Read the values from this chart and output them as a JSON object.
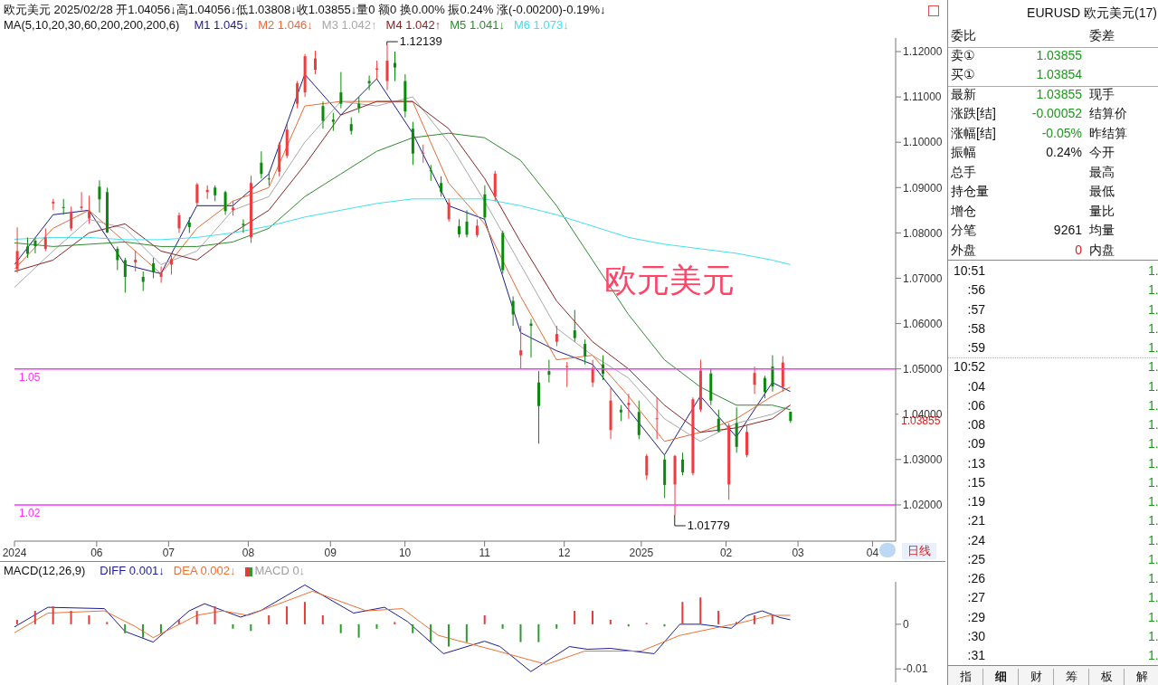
{
  "chart_data": [
    {
      "type": "candlestick",
      "title": "欧元美元 2025/02/28 开1.04056↓高1.04056↓低1.03808↓收1.03855↓量0 额0 换0.00% 振0.24% 涨(-0.00200)-0.19%↓",
      "legend_title": "MA(5,10,20,30,60,200,200,200,6)",
      "legend": "top left",
      "xlabel": "日线",
      "marker": "none",
      "line_style": "solid",
      "xlim": [
        "2024-05-02",
        "2025-04-10"
      ],
      "xticks": [
        {
          "value": "2024-05-02",
          "label": "2024"
        },
        {
          "value": "2024-06-03",
          "label": "06"
        },
        {
          "value": "2024-07-01",
          "label": "07"
        },
        {
          "value": "2024-08-01",
          "label": "08"
        },
        {
          "value": "2024-09-02",
          "label": "09"
        },
        {
          "value": "2024-10-01",
          "label": "10"
        },
        {
          "value": "2024-11-01",
          "label": "11"
        },
        {
          "value": "2024-12-02",
          "label": "12"
        },
        {
          "value": "2025-01-01",
          "label": "2025"
        },
        {
          "value": "2025-02-03",
          "label": "02"
        },
        {
          "value": "2025-03-03",
          "label": "03"
        },
        {
          "value": "2025-04-01",
          "label": "04"
        }
      ],
      "ylim": [
        1.012,
        1.123
      ],
      "yticks": [
        {
          "value": 1.02,
          "label": "1.02000"
        },
        {
          "value": 1.03,
          "label": "1.03000"
        },
        {
          "value": 1.04,
          "label": "1.04000"
        },
        {
          "value": 1.05,
          "label": "1.05000"
        },
        {
          "value": 1.06,
          "label": "1.06000"
        },
        {
          "value": 1.07,
          "label": "1.07000"
        },
        {
          "value": 1.08,
          "label": "1.08000"
        },
        {
          "value": 1.09,
          "label": "1.09000"
        },
        {
          "value": 1.1,
          "label": "1.10000"
        },
        {
          "value": 1.11,
          "label": "1.11000"
        },
        {
          "value": 1.12,
          "label": "1.12000"
        }
      ],
      "x": [
        "2024-05-03",
        "2024-05-07",
        "2024-05-10",
        "2024-05-14",
        "2024-05-17",
        "2024-05-21",
        "2024-05-24",
        "2024-05-28",
        "2024-05-31",
        "2024-06-04",
        "2024-06-07",
        "2024-06-11",
        "2024-06-14",
        "2024-06-18",
        "2024-06-21",
        "2024-06-25",
        "2024-06-28",
        "2024-07-02",
        "2024-07-05",
        "2024-07-09",
        "2024-07-12",
        "2024-07-16",
        "2024-07-19",
        "2024-07-23",
        "2024-07-26",
        "2024-07-30",
        "2024-08-02",
        "2024-08-06",
        "2024-08-09",
        "2024-08-13",
        "2024-08-16",
        "2024-08-20",
        "2024-08-23",
        "2024-08-27",
        "2024-08-30",
        "2024-09-03",
        "2024-09-06",
        "2024-09-10",
        "2024-09-13",
        "2024-09-17",
        "2024-09-20",
        "2024-09-24",
        "2024-09-27",
        "2024-10-01",
        "2024-10-04",
        "2024-10-08",
        "2024-10-11",
        "2024-10-15",
        "2024-10-18",
        "2024-10-22",
        "2024-10-25",
        "2024-10-29",
        "2024-11-01",
        "2024-11-05",
        "2024-11-08",
        "2024-11-12",
        "2024-11-15",
        "2024-11-19",
        "2024-11-22",
        "2024-11-26",
        "2024-11-29",
        "2024-12-03",
        "2024-12-06",
        "2024-12-10",
        "2024-12-13",
        "2024-12-17",
        "2024-12-20",
        "2024-12-24",
        "2024-12-27",
        "2024-12-31",
        "2025-01-03",
        "2025-01-07",
        "2025-01-10",
        "2025-01-14",
        "2025-01-17",
        "2025-01-21",
        "2025-01-24",
        "2025-01-28",
        "2025-01-31",
        "2025-02-04",
        "2025-02-07",
        "2025-02-11",
        "2025-02-14",
        "2025-02-18",
        "2025-02-21",
        "2025-02-25",
        "2025-02-28"
      ],
      "ohlc": [
        [
          1.072,
          1.0812,
          1.0712,
          1.076
        ],
        [
          1.077,
          1.079,
          1.0745,
          1.0754
        ],
        [
          1.0783,
          1.079,
          1.0755,
          1.0771
        ],
        [
          1.0765,
          1.081,
          1.076,
          1.079
        ],
        [
          1.0865,
          1.0875,
          1.085,
          1.0869
        ],
        [
          1.0857,
          1.0875,
          1.084,
          1.0856
        ],
        [
          1.081,
          1.0858,
          1.0805,
          1.0847
        ],
        [
          1.0855,
          1.089,
          1.085,
          1.0858
        ],
        [
          1.0832,
          1.0882,
          1.082,
          1.0848
        ],
        [
          1.0902,
          1.0916,
          1.0845,
          1.0874
        ],
        [
          1.089,
          1.09,
          1.08,
          1.0801
        ],
        [
          1.0765,
          1.077,
          1.0718,
          1.074
        ],
        [
          1.074,
          1.0745,
          1.0668,
          1.0703
        ],
        [
          1.0735,
          1.076,
          1.0715,
          1.0741
        ],
        [
          1.0703,
          1.0715,
          1.0672,
          1.0692
        ],
        [
          1.0733,
          1.0745,
          1.07,
          1.0714
        ],
        [
          1.0703,
          1.0726,
          1.069,
          1.0713
        ],
        [
          1.073,
          1.075,
          1.0708,
          1.0742
        ],
        [
          1.081,
          1.0845,
          1.08,
          1.0839
        ],
        [
          1.0823,
          1.0835,
          1.08,
          1.0813
        ],
        [
          1.0866,
          1.091,
          1.086,
          1.0907
        ],
        [
          1.089,
          1.0905,
          1.0875,
          1.0895
        ],
        [
          1.09,
          1.0905,
          1.087,
          1.0883
        ],
        [
          1.089,
          1.0893,
          1.084,
          1.0848
        ],
        [
          1.085,
          1.087,
          1.0838,
          1.0856
        ],
        [
          1.082,
          1.083,
          1.08,
          1.0817
        ],
        [
          1.079,
          1.0926,
          1.0778,
          1.091
        ],
        [
          1.0955,
          1.098,
          1.092,
          1.093
        ],
        [
          1.092,
          1.0935,
          1.0905,
          1.0918
        ],
        [
          1.0935,
          1.1,
          1.0925,
          1.0995
        ],
        [
          1.097,
          1.104,
          1.0965,
          1.1028
        ],
        [
          1.1085,
          1.1135,
          1.1075,
          1.113
        ],
        [
          1.111,
          1.1195,
          1.11,
          1.119
        ],
        [
          1.116,
          1.1202,
          1.115,
          1.1185
        ],
        [
          1.108,
          1.109,
          1.103,
          1.1047
        ],
        [
          1.105,
          1.1065,
          1.1025,
          1.1045
        ],
        [
          1.111,
          1.1155,
          1.1075,
          1.1085
        ],
        [
          1.104,
          1.1055,
          1.1017,
          1.1025
        ],
        [
          1.1085,
          1.11,
          1.1065,
          1.1076
        ],
        [
          1.1135,
          1.1147,
          1.1115,
          1.113
        ],
        [
          1.116,
          1.118,
          1.114,
          1.1163
        ],
        [
          1.1135,
          1.12139,
          1.1115,
          1.118
        ],
        [
          1.1175,
          1.12,
          1.1135,
          1.1165
        ],
        [
          1.1135,
          1.115,
          1.1055,
          1.1068
        ],
        [
          1.103,
          1.1045,
          1.095,
          1.0975
        ],
        [
          1.0975,
          1.0995,
          1.0955,
          1.0977
        ],
        [
          1.0938,
          1.095,
          1.0915,
          1.0937
        ],
        [
          1.091,
          1.0925,
          1.088,
          1.089
        ],
        [
          1.083,
          1.0875,
          1.0825,
          1.0866
        ],
        [
          1.0815,
          1.083,
          1.079,
          1.0797
        ],
        [
          1.0825,
          1.085,
          1.079,
          1.0796
        ],
        [
          1.0795,
          1.083,
          1.079,
          1.0816
        ],
        [
          1.0885,
          1.0905,
          1.083,
          1.0834
        ],
        [
          1.088,
          1.0937,
          1.087,
          1.0931
        ],
        [
          1.08,
          1.0805,
          1.071,
          1.0718
        ],
        [
          1.065,
          1.066,
          1.0595,
          1.062
        ],
        [
          1.053,
          1.0595,
          1.05,
          1.0541
        ],
        [
          1.06,
          1.061,
          1.0525,
          1.0595
        ],
        [
          1.047,
          1.0495,
          1.0335,
          1.0418
        ],
        [
          1.0495,
          1.052,
          1.047,
          1.0487
        ],
        [
          1.056,
          1.0595,
          1.055,
          1.0577
        ],
        [
          1.0505,
          1.0515,
          1.046,
          1.0506
        ],
        [
          1.0585,
          1.063,
          1.056,
          1.0568
        ],
        [
          1.0555,
          1.0565,
          1.051,
          1.0528
        ],
        [
          1.047,
          1.052,
          1.046,
          1.0502
        ],
        [
          1.051,
          1.053,
          1.0475,
          1.0489
        ],
        [
          1.0365,
          1.0458,
          1.0345,
          1.043
        ],
        [
          1.041,
          1.042,
          1.0385,
          1.0404
        ],
        [
          1.042,
          1.0445,
          1.039,
          1.0425
        ],
        [
          1.0405,
          1.043,
          1.0345,
          1.0354
        ],
        [
          1.0265,
          1.0312,
          1.0255,
          1.0308
        ],
        [
          1.039,
          1.0437,
          1.0345,
          1.0391
        ],
        [
          1.03,
          1.031,
          1.0215,
          1.0244
        ],
        [
          1.0245,
          1.031,
          1.01779,
          1.0308
        ],
        [
          1.03,
          1.0315,
          1.0265,
          1.0272
        ],
        [
          1.027,
          1.0437,
          1.0265,
          1.0433
        ],
        [
          1.041,
          1.052,
          1.0405,
          1.0496
        ],
        [
          1.049,
          1.05,
          1.042,
          1.043
        ],
        [
          1.039,
          1.041,
          1.036,
          1.0362
        ],
        [
          1.0245,
          1.038,
          1.0211,
          1.0375
        ],
        [
          1.038,
          1.0415,
          1.0315,
          1.0328
        ],
        [
          1.031,
          1.0375,
          1.0305,
          1.0361
        ],
        [
          1.0465,
          1.0505,
          1.0445,
          1.0491
        ],
        [
          1.048,
          1.0485,
          1.0435,
          1.0449
        ],
        [
          1.0505,
          1.053,
          1.045,
          1.0461
        ],
        [
          1.046,
          1.0528,
          1.045,
          1.0514
        ],
        [
          1.04056,
          1.04056,
          1.03808,
          1.03855
        ]
      ],
      "series": [
        {
          "name": "M1 1.045↓",
          "color": "#1c1c8c",
          "type": "line",
          "x": [
            "2024-05-02",
            "2024-05-17",
            "2024-05-31",
            "2024-06-14",
            "2024-06-28",
            "2024-07-12",
            "2024-07-26",
            "2024-08-09",
            "2024-08-23",
            "2024-09-06",
            "2024-09-20",
            "2024-10-04",
            "2024-10-18",
            "2024-11-01",
            "2024-11-15",
            "2024-11-29",
            "2024-12-13",
            "2024-12-27",
            "2025-01-10",
            "2025-01-24",
            "2025-02-07",
            "2025-02-21",
            "2025-02-28"
          ],
          "values": [
            1.073,
            1.084,
            1.085,
            1.073,
            1.071,
            1.086,
            1.086,
            1.093,
            1.115,
            1.106,
            1.114,
            1.102,
            1.086,
            1.083,
            1.058,
            1.054,
            1.051,
            1.041,
            1.031,
            1.044,
            1.035,
            1.047,
            1.045
          ]
        },
        {
          "name": "M2 1.046↓",
          "color": "#ec6a32",
          "type": "line",
          "x": [
            "2024-05-02",
            "2024-05-17",
            "2024-05-31",
            "2024-06-14",
            "2024-06-28",
            "2024-07-12",
            "2024-07-26",
            "2024-08-09",
            "2024-08-23",
            "2024-09-06",
            "2024-09-20",
            "2024-10-04",
            "2024-10-18",
            "2024-11-01",
            "2024-11-15",
            "2024-11-29",
            "2024-12-13",
            "2024-12-27",
            "2025-01-10",
            "2025-01-24",
            "2025-02-07",
            "2025-02-21",
            "2025-02-28"
          ],
          "values": [
            1.072,
            1.081,
            1.085,
            1.078,
            1.071,
            1.081,
            1.087,
            1.09,
            1.108,
            1.109,
            1.109,
            1.109,
            1.091,
            1.082,
            1.066,
            1.052,
            1.053,
            1.044,
            1.034,
            1.036,
            1.039,
            1.044,
            1.046
          ]
        },
        {
          "name": "M3 1.042↑",
          "color": "#a8a8a8",
          "type": "line",
          "x": [
            "2024-05-02",
            "2024-05-17",
            "2024-05-31",
            "2024-06-14",
            "2024-06-28",
            "2024-07-12",
            "2024-07-26",
            "2024-08-09",
            "2024-08-23",
            "2024-09-06",
            "2024-09-20",
            "2024-10-04",
            "2024-10-18",
            "2024-11-01",
            "2024-11-15",
            "2024-11-29",
            "2024-12-13",
            "2024-12-27",
            "2025-01-10",
            "2025-01-24",
            "2025-02-07",
            "2025-02-21",
            "2025-02-28"
          ],
          "values": [
            1.068,
            1.076,
            1.083,
            1.081,
            1.073,
            1.076,
            1.085,
            1.088,
            1.1,
            1.109,
            1.108,
            1.11,
            1.1,
            1.087,
            1.073,
            1.059,
            1.053,
            1.048,
            1.039,
            1.034,
            1.038,
            1.04,
            1.042
          ]
        },
        {
          "name": "M4 1.042↑",
          "color": "#8c2323",
          "type": "line",
          "x": [
            "2024-05-02",
            "2024-05-17",
            "2024-05-31",
            "2024-06-14",
            "2024-06-28",
            "2024-07-12",
            "2024-07-26",
            "2024-08-09",
            "2024-08-23",
            "2024-09-06",
            "2024-09-20",
            "2024-10-04",
            "2024-10-18",
            "2024-11-01",
            "2024-11-15",
            "2024-11-29",
            "2024-12-13",
            "2024-12-27",
            "2025-01-10",
            "2025-01-24",
            "2025-02-07",
            "2025-02-21",
            "2025-02-28"
          ],
          "values": [
            1.0715,
            1.074,
            1.08,
            1.082,
            1.076,
            1.074,
            1.08,
            1.085,
            1.095,
            1.106,
            1.109,
            1.109,
            1.103,
            1.092,
            1.078,
            1.065,
            1.056,
            1.05,
            1.042,
            1.036,
            1.037,
            1.039,
            1.042
          ]
        },
        {
          "name": "M5 1.041↓",
          "color": "#2e8b2e",
          "type": "line",
          "x": [
            "2024-05-02",
            "2024-05-17",
            "2024-05-31",
            "2024-06-14",
            "2024-06-28",
            "2024-07-12",
            "2024-07-26",
            "2024-08-09",
            "2024-08-23",
            "2024-09-06",
            "2024-09-20",
            "2024-10-04",
            "2024-10-18",
            "2024-11-01",
            "2024-11-15",
            "2024-11-29",
            "2024-12-13",
            "2024-12-27",
            "2025-01-10",
            "2025-01-24",
            "2025-02-07",
            "2025-02-21",
            "2025-02-28"
          ],
          "values": [
            1.0778,
            1.077,
            1.0775,
            1.078,
            1.077,
            1.077,
            1.078,
            1.081,
            1.088,
            1.093,
            1.098,
            1.101,
            1.102,
            1.101,
            1.096,
            1.086,
            1.074,
            1.062,
            1.052,
            1.046,
            1.042,
            1.042,
            1.041
          ]
        },
        {
          "name": "M6 1.073↓",
          "color": "#40e0f0",
          "type": "line",
          "x": [
            "2024-05-02",
            "2024-05-17",
            "2024-05-31",
            "2024-06-14",
            "2024-06-28",
            "2024-07-12",
            "2024-07-26",
            "2024-08-09",
            "2024-08-23",
            "2024-09-06",
            "2024-09-20",
            "2024-10-04",
            "2024-10-18",
            "2024-11-01",
            "2024-11-15",
            "2024-11-29",
            "2024-12-13",
            "2024-12-27",
            "2025-01-10",
            "2025-01-24",
            "2025-02-07",
            "2025-02-21",
            "2025-02-28"
          ],
          "values": [
            1.0786,
            1.079,
            1.079,
            1.0785,
            1.0785,
            1.079,
            1.08,
            1.0815,
            1.0835,
            1.085,
            1.0865,
            1.0875,
            1.0875,
            1.0875,
            1.086,
            1.084,
            1.0815,
            1.079,
            1.0775,
            1.0765,
            1.0755,
            1.074,
            1.073
          ]
        }
      ],
      "ref_lines": [
        {
          "axis": "y",
          "value": 1.05,
          "label": "1.05",
          "color": "#ff33ff"
        },
        {
          "axis": "y",
          "value": 1.02,
          "label": "1.02",
          "color": "#ff33ff"
        }
      ],
      "annotations": [
        {
          "text": "1.12139",
          "x": "2024-09-24",
          "y": 1.12139
        },
        {
          "text": "1.01779",
          "x": "2025-01-14",
          "y": 1.01779
        },
        "1.03855",
        "欧元美元"
      ]
    },
    {
      "type": "line",
      "legend_title": "MACD(12,26,9)",
      "legend": "top left",
      "tick_labels": "y",
      "marker": "none",
      "line_style": "solid",
      "xlim": [
        "2024-05-02",
        "2025-04-10"
      ],
      "ylim": [
        -0.013,
        0.0095
      ],
      "yticks": [
        -0.01,
        0
      ],
      "series": [
        {
          "name": "DIFF 0.001↓",
          "color": "#1c1c9c",
          "type": "line",
          "x": [
            "2024-05-02",
            "2024-05-15",
            "2024-06-06",
            "2024-06-14",
            "2024-06-25",
            "2024-07-09",
            "2024-07-15",
            "2024-07-29",
            "2024-08-06",
            "2024-08-23",
            "2024-09-11",
            "2024-09-23",
            "2024-10-02",
            "2024-10-16",
            "2024-11-01",
            "2024-11-07",
            "2024-11-19",
            "2024-12-04",
            "2024-12-11",
            "2024-12-20",
            "2025-01-06",
            "2025-01-16",
            "2025-01-24",
            "2025-02-05",
            "2025-02-11",
            "2025-02-17",
            "2025-02-24",
            "2025-02-28"
          ],
          "values": [
            -0.0006,
            0.0038,
            0.0035,
            -0.0016,
            -0.004,
            0.003,
            0.0046,
            0.0016,
            0.0031,
            0.0088,
            0.0025,
            0.0038,
            0.0006,
            -0.0066,
            -0.0038,
            -0.005,
            -0.0106,
            -0.005,
            -0.0056,
            -0.0054,
            -0.0066,
            0,
            0,
            -0.0009,
            0.0019,
            0.003,
            0.0015,
            0.001
          ]
        },
        {
          "name": "DEA 0.002↓",
          "color": "#f07030",
          "type": "line",
          "x": [
            "2024-05-02",
            "2024-05-15",
            "2024-06-06",
            "2024-06-18",
            "2024-06-25",
            "2024-07-12",
            "2024-07-22",
            "2024-08-01",
            "2024-08-26",
            "2024-09-16",
            "2024-09-30",
            "2024-10-14",
            "2024-11-06",
            "2024-11-25",
            "2024-12-10",
            "2025-01-01",
            "2025-01-16",
            "2025-01-30",
            "2025-02-10",
            "2025-02-20",
            "2025-02-28"
          ],
          "values": [
            -0.0019,
            0.0025,
            0.003,
            -0.0005,
            -0.003,
            0.002,
            0.003,
            0.002,
            0.0074,
            0.003,
            0.0035,
            -0.0025,
            -0.006,
            -0.009,
            -0.006,
            -0.006,
            -0.0025,
            -0.0008,
            0.0005,
            0.002,
            0.002
          ]
        },
        {
          "name": "MACD 0↓",
          "color": "#a0a0a0",
          "type": "bar",
          "x": [
            "2024-05-03",
            "2024-05-10",
            "2024-05-17",
            "2024-05-24",
            "2024-05-31",
            "2024-06-07",
            "2024-06-14",
            "2024-06-21",
            "2024-06-28",
            "2024-07-05",
            "2024-07-12",
            "2024-07-19",
            "2024-07-26",
            "2024-08-02",
            "2024-08-09",
            "2024-08-16",
            "2024-08-23",
            "2024-08-30",
            "2024-09-06",
            "2024-09-13",
            "2024-09-20",
            "2024-09-27",
            "2024-10-04",
            "2024-10-11",
            "2024-10-18",
            "2024-10-25",
            "2024-11-01",
            "2024-11-08",
            "2024-11-15",
            "2024-11-22",
            "2024-11-29",
            "2024-12-06",
            "2024-12-13",
            "2024-12-20",
            "2024-12-27",
            "2025-01-03",
            "2025-01-10",
            "2025-01-17",
            "2025-01-24",
            "2025-01-31",
            "2025-02-07",
            "2025-02-14",
            "2025-02-21",
            "2025-02-28"
          ],
          "values": [
            0.001,
            0.003,
            0.004,
            0.003,
            0.002,
            0.0005,
            -0.002,
            -0.003,
            -0.002,
            0.001,
            0.003,
            0.004,
            -0.001,
            -0.0015,
            0.002,
            0.004,
            0.005,
            0.002,
            -0.002,
            -0.003,
            -0.001,
            0.0005,
            -0.002,
            -0.004,
            -0.005,
            -0.004,
            0.002,
            -0.001,
            -0.004,
            -0.004,
            -0.001,
            0.003,
            0.003,
            0.001,
            -0.0005,
            0.0003,
            -0.0005,
            0.005,
            0.006,
            0.003,
            0.0005,
            0.002,
            0.002,
            0
          ],
          "colors": [
            "#e83a3a",
            "#e83a3a",
            "#e83a3a",
            "#e83a3a",
            "#e83a3a",
            "#e83a3a",
            "#2f9a2f",
            "#2f9a2f",
            "#2f9a2f",
            "#e83a3a",
            "#e83a3a",
            "#e83a3a",
            "#2f9a2f",
            "#2f9a2f",
            "#e83a3a",
            "#e83a3a",
            "#e83a3a",
            "#e83a3a",
            "#2f9a2f",
            "#2f9a2f",
            "#2f9a2f",
            "#e83a3a",
            "#2f9a2f",
            "#2f9a2f",
            "#2f9a2f",
            "#2f9a2f",
            "#e83a3a",
            "#2f9a2f",
            "#2f9a2f",
            "#2f9a2f",
            "#2f9a2f",
            "#e83a3a",
            "#e83a3a",
            "#e83a3a",
            "#2f9a2f",
            "#e83a3a",
            "#2f9a2f",
            "#e83a3a",
            "#e83a3a",
            "#e83a3a",
            "#e83a3a",
            "#e83a3a",
            "#e83a3a",
            "#e83a3a"
          ]
        }
      ]
    },
    {
      "type": "other",
      "title": "EURUSD 欧元美元(17)",
      "annotations": [
        "委比",
        "委差",
        "卖①",
        "1.03855",
        "买①",
        "1.03854",
        "最新",
        "1.03855",
        "现手",
        "涨跌[结]",
        "-0.00052",
        "结算价",
        "涨幅[结]",
        "-0.05%",
        "昨结算",
        "振幅",
        "0.24%",
        "今开",
        "总手",
        "最高",
        "持仓量",
        "最低",
        "增仓",
        "量比",
        "分笔",
        "9261",
        "均量",
        "外盘",
        "0",
        "内盘",
        "10:51",
        "1.",
        ":56",
        "1.",
        ":57",
        "1.",
        ":58",
        "1.",
        ":59",
        "1.",
        "10:52",
        "1.",
        ":04",
        "1.",
        ":06",
        "1.",
        ":08",
        "1.",
        ":09",
        "1.",
        ":13",
        "1.",
        ":15",
        "1.",
        ":19",
        "1.",
        ":21",
        "1.",
        ":24",
        "1.",
        ":25",
        "1.",
        ":26",
        "1.",
        ":27",
        "1.",
        ":29",
        "1.",
        ":30",
        "1.",
        ":31",
        "1.",
        "指",
        "细",
        "财",
        "筹",
        "板",
        "解"
      ]
    }
  ]
}
